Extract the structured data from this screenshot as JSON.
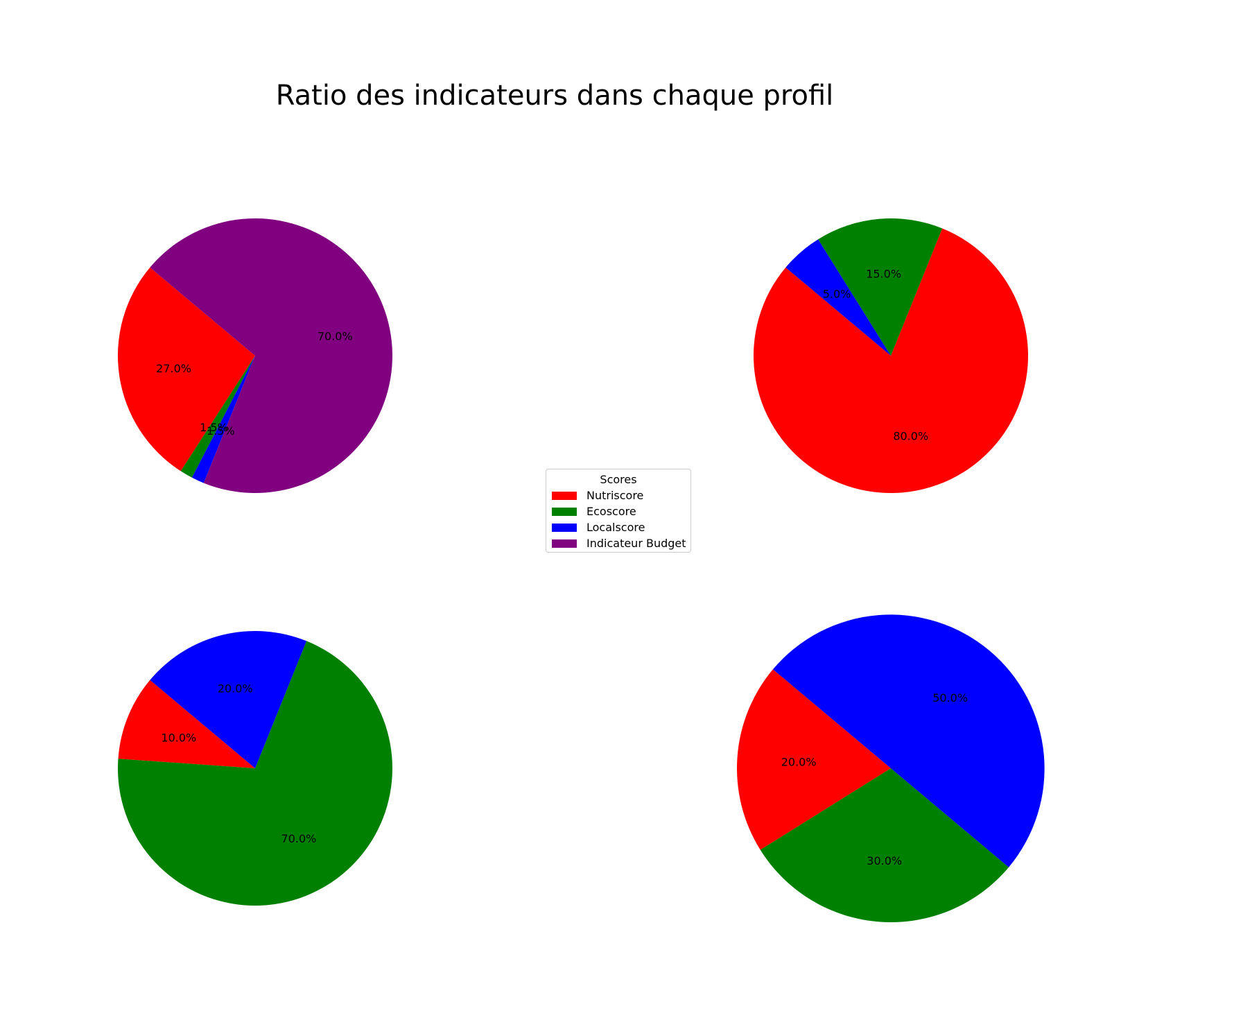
{
  "chart_data": {
    "type": "pie",
    "title": "Ratio des indicateurs dans chaque profil",
    "legend": {
      "title": "Scores",
      "placement": "center",
      "entries": [
        "Nutriscore",
        "Ecoscore",
        "Localscore",
        "Indicateur Budget"
      ]
    },
    "colors": {
      "Nutriscore": "#ff0000",
      "Ecoscore": "#008000",
      "Localscore": "#0000ff",
      "Indicateur Budget": "#800080"
    },
    "pies": [
      {
        "slices": [
          {
            "name": "Nutriscore",
            "value": 27.0,
            "label": "27.0%"
          },
          {
            "name": "Ecoscore",
            "value": 1.5,
            "label": "1.5%"
          },
          {
            "name": "Localscore",
            "value": 1.5,
            "label": "1.5%"
          },
          {
            "name": "Indicateur Budget",
            "value": 70.0,
            "label": "70.0%"
          }
        ]
      },
      {
        "slices": [
          {
            "name": "Nutriscore",
            "value": 80.0,
            "label": "80.0%"
          },
          {
            "name": "Ecoscore",
            "value": 15.0,
            "label": "15.0%"
          },
          {
            "name": "Localscore",
            "value": 5.0,
            "label": "5.0%"
          }
        ]
      },
      {
        "slices": [
          {
            "name": "Nutriscore",
            "value": 10.0,
            "label": "10.0%"
          },
          {
            "name": "Ecoscore",
            "value": 70.0,
            "label": "70.0%"
          },
          {
            "name": "Localscore",
            "value": 20.0,
            "label": "20.0%"
          }
        ]
      },
      {
        "slices": [
          {
            "name": "Nutriscore",
            "value": 20.0,
            "label": "20.0%"
          },
          {
            "name": "Ecoscore",
            "value": 30.0,
            "label": "30.0%"
          },
          {
            "name": "Localscore",
            "value": 50.0,
            "label": "50.0%"
          }
        ]
      }
    ]
  }
}
